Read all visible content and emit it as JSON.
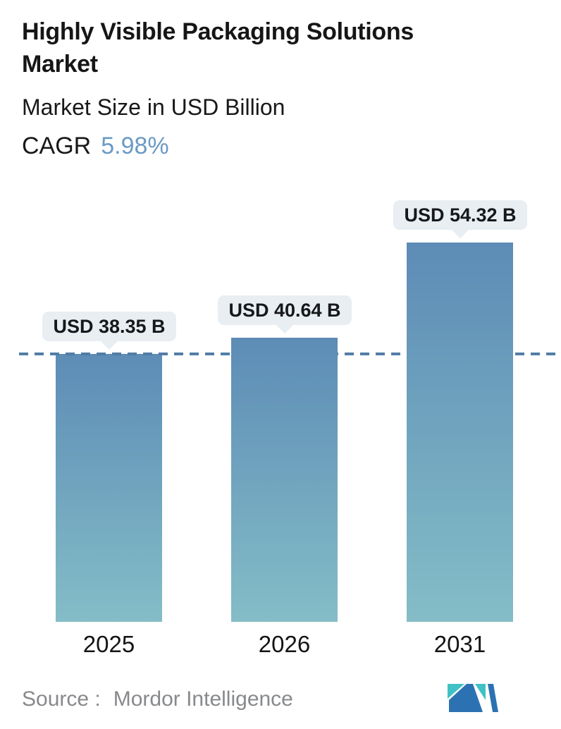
{
  "header": {
    "title_line1": "Highly Visible Packaging Solutions",
    "title_line2": "Market",
    "subtitle": "Market Size in USD Billion",
    "cagr_label": "CAGR",
    "cagr_value": "5.98%",
    "cagr_color": "#6b9ac5"
  },
  "chart_data": {
    "type": "bar",
    "title": "Highly Visible Packaging Solutions Market",
    "subtitle": "Market Size in USD Billion",
    "cagr_pct": 5.98,
    "unit": "USD Billion",
    "categories": [
      "2025",
      "2026",
      "2031"
    ],
    "values": [
      38.35,
      40.64,
      54.32
    ],
    "value_labels": [
      "USD 38.35 B",
      "USD 40.64 B",
      "USD 54.32 B"
    ],
    "baseline": {
      "value": 38.35,
      "style": "dashed",
      "note": "dashed reference line at 2025 market size"
    },
    "legend": "none",
    "gridlines": false,
    "xlabel": "",
    "ylabel": "",
    "colors": {
      "bar_gradient_top": "#5d8cb6",
      "bar_gradient_bottom": "#84bdc7",
      "dash_line": "#527ea6",
      "callout_bg": "#e8eef2",
      "callout_text": "#16181a"
    }
  },
  "footer": {
    "source_label": "Source :",
    "source_value": "Mordor Intelligence",
    "logo": "mordor-intelligence-logo",
    "logo_colors": {
      "teal": "#40c1c5",
      "blue": "#2c72b2"
    }
  }
}
